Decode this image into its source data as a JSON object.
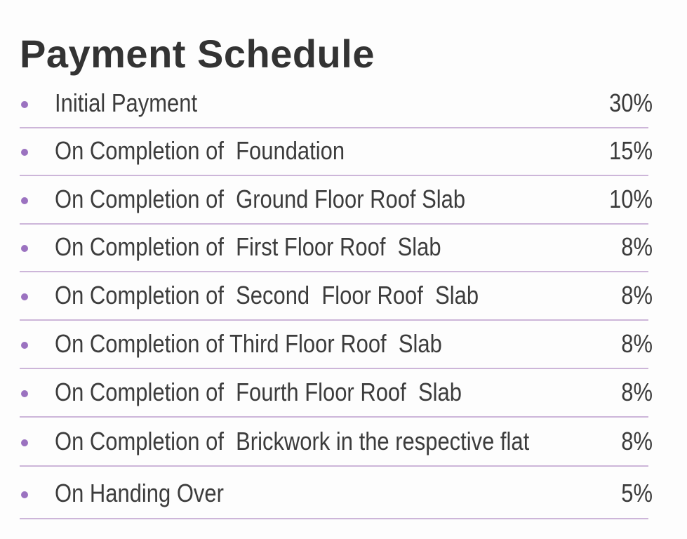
{
  "title": "Payment Schedule",
  "accent_color": "#9b72c0",
  "items": [
    {
      "label": "Initial Payment",
      "percent": "30%"
    },
    {
      "label": "On Completion of  Foundation",
      "percent": "15%"
    },
    {
      "label": "On Completion of  Ground Floor Roof Slab",
      "percent": "10%"
    },
    {
      "label": "On Completion of  First Floor Roof  Slab",
      "percent": "8%"
    },
    {
      "label": "On Completion of  Second  Floor Roof  Slab",
      "percent": "8%"
    },
    {
      "label": "On Completion of Third Floor Roof  Slab",
      "percent": "8%"
    },
    {
      "label": "On Completion of  Fourth Floor Roof  Slab",
      "percent": "8%"
    },
    {
      "label": "On Completion of  Brickwork in the respective flat",
      "percent": "8%"
    },
    {
      "label": "On Handing Over",
      "percent": "5%"
    }
  ]
}
